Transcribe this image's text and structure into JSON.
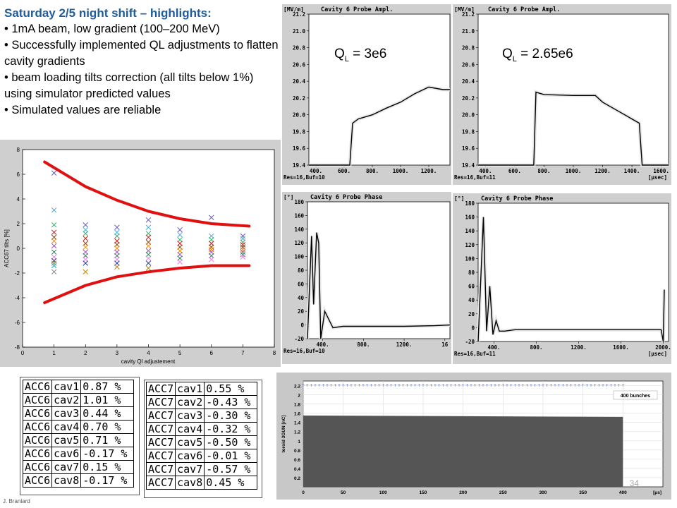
{
  "notes": {
    "title": "Saturday 2/5 night shift – highlights:",
    "bullets": [
      "1mA beam, low gradient (100–200 MeV)",
      "Successfully implemented QL adjustments to flatten cavity gradients",
      "beam loading tilts correction (all tilts below 1%) using simulator predicted values",
      "Simulated values are reliable"
    ]
  },
  "scatter": {
    "ylabel": "ACC67 tilts [%]",
    "xlabel": "cavity Ql adjustement",
    "x_ticks": [
      "0",
      "1",
      "2",
      "3",
      "4",
      "5",
      "6",
      "7",
      "8"
    ],
    "y_ticks": [
      "8",
      "6",
      "4",
      "2",
      "0",
      "-2",
      "-4",
      "-6",
      "-8"
    ]
  },
  "chart_data": [
    {
      "type": "scatter",
      "xlabel": "cavity Ql adjustement",
      "ylabel": "ACC67 tilts [%]",
      "xlim": [
        0,
        8
      ],
      "ylim": [
        -8,
        8
      ],
      "grid": false,
      "series": [
        {
          "x": [
            1,
            1,
            1,
            1,
            1,
            1,
            1,
            1,
            1,
            1,
            1,
            1,
            1
          ],
          "y": [
            6.1,
            3.1,
            1.9,
            1.3,
            0.9,
            0.6,
            0.2,
            -0.3,
            -0.7,
            -1.0,
            -1.2,
            -1.4,
            -1.9
          ]
        },
        {
          "x": [
            2,
            2,
            2,
            2,
            2,
            2,
            2,
            2,
            2,
            2,
            2
          ],
          "y": [
            1.9,
            1.5,
            1.2,
            0.8,
            0.4,
            0.1,
            -0.3,
            -0.6,
            -0.9,
            -1.2,
            -1.9
          ]
        },
        {
          "x": [
            3,
            3,
            3,
            3,
            3,
            3,
            3,
            3,
            3,
            3,
            3
          ],
          "y": [
            1.7,
            1.3,
            1.0,
            0.6,
            0.3,
            0.0,
            -0.3,
            -0.6,
            -0.9,
            -1.2,
            -1.5
          ]
        },
        {
          "x": [
            4,
            4,
            4,
            4,
            4,
            4,
            4,
            4,
            4,
            4,
            4
          ],
          "y": [
            2.3,
            1.7,
            1.2,
            0.9,
            0.5,
            0.2,
            -0.2,
            -0.5,
            -0.8,
            -1.2,
            -1.6
          ]
        },
        {
          "x": [
            5,
            5,
            5,
            5,
            5,
            5,
            5,
            5,
            5
          ],
          "y": [
            1.5,
            1.1,
            0.7,
            0.4,
            0.1,
            -0.2,
            -0.5,
            -0.8,
            -1.1
          ]
        },
        {
          "x": [
            6,
            6,
            6,
            6,
            6,
            6,
            6,
            6,
            6
          ],
          "y": [
            2.5,
            1.0,
            0.7,
            0.4,
            0.1,
            -0.1,
            -0.3,
            -0.6,
            -0.9
          ]
        },
        {
          "x": [
            7,
            7,
            7,
            7,
            7,
            7,
            7,
            7,
            7
          ],
          "y": [
            1.0,
            0.8,
            0.5,
            0.3,
            0.1,
            -0.1,
            -0.3,
            -0.5,
            -0.7
          ]
        }
      ],
      "envelope_upper": {
        "x": [
          0.7,
          2,
          3,
          4,
          5,
          6,
          7.2
        ],
        "y": [
          7.0,
          5.0,
          3.9,
          3.0,
          2.4,
          2.0,
          1.8
        ]
      },
      "envelope_lower": {
        "x": [
          0.7,
          2,
          3,
          4,
          5,
          6,
          7.2
        ],
        "y": [
          -4.4,
          -3.0,
          -2.3,
          -1.9,
          -1.6,
          -1.4,
          -1.4
        ]
      }
    },
    {
      "type": "line",
      "title": "Cavity 6 Probe Ampl.",
      "ylabel": "[MV/m]",
      "ylim": [
        19.4,
        21.2
      ],
      "xlim": [
        350,
        1350
      ],
      "x": [
        350,
        640,
        660,
        700,
        800,
        900,
        1000,
        1100,
        1200,
        1300,
        1350
      ],
      "y": [
        19.4,
        19.4,
        19.9,
        19.95,
        20.0,
        20.08,
        20.15,
        20.25,
        20.33,
        20.3,
        20.3
      ]
    },
    {
      "type": "line",
      "title": "Cavity 6 Probe Ampl.",
      "ylabel": "[MV/m]",
      "ylim": [
        19.4,
        21.2
      ],
      "xlim": [
        350,
        1650
      ],
      "x": [
        350,
        730,
        745,
        800,
        1000,
        1150,
        1200,
        1300,
        1400,
        1450,
        1470,
        1650
      ],
      "y": [
        19.4,
        19.4,
        20.27,
        20.24,
        20.23,
        20.23,
        20.15,
        20.05,
        19.95,
        19.9,
        19.4,
        19.4
      ]
    },
    {
      "type": "line",
      "title": "Cavity 6 Probe Phase",
      "ylabel": "[°]",
      "ylim": [
        -20,
        180
      ],
      "xlim": [
        250,
        1650
      ],
      "x": [
        250,
        290,
        310,
        340,
        360,
        380,
        420,
        500,
        600,
        900,
        1200,
        1500,
        1650
      ],
      "y": [
        -20,
        130,
        30,
        135,
        120,
        -20,
        20,
        -4,
        -2,
        -2,
        -2,
        -1,
        0
      ]
    },
    {
      "type": "line",
      "title": "Cavity 6 Probe Phase",
      "ylabel": "[°]",
      "ylim": [
        -20,
        180
      ],
      "xlim": [
        250,
        2050
      ],
      "x": [
        250,
        300,
        330,
        360,
        390,
        420,
        450,
        500,
        600,
        1000,
        1500,
        1980,
        2000,
        2010
      ],
      "y": [
        -20,
        160,
        -5,
        60,
        -10,
        10,
        -5,
        -5,
        -3,
        -3,
        -3,
        -3,
        -20,
        55
      ]
    },
    {
      "type": "bar",
      "ylabel": "toroid 3GUN [nC]",
      "ylim": [
        0,
        2.3
      ],
      "xlim": [
        0,
        450
      ],
      "series": [
        {
          "name": "400 bunches",
          "x": [
            0,
            400
          ],
          "y": [
            1.55,
            1.52
          ]
        }
      ]
    }
  ],
  "ampl1": {
    "unit": "[MV/m]",
    "title": "Cavity 6 Probe Ampl.",
    "y_ticks": [
      "21.2",
      "21.0",
      "20.8",
      "20.6",
      "20.4",
      "20.2",
      "20.0",
      "19.8",
      "19.6",
      "19.4"
    ],
    "x_ticks": [
      "400.",
      "600.",
      "800.",
      "1000.",
      "1200."
    ],
    "footer": "Res=16,Buf=10"
  },
  "ampl2": {
    "unit": "[MV/m]",
    "title": "Cavity 6 Probe Ampl.",
    "y_ticks": [
      "21.2",
      "21.0",
      "20.8",
      "20.6",
      "20.4",
      "20.2",
      "20.0",
      "19.8",
      "19.6",
      "19.4"
    ],
    "x_ticks": [
      "400.",
      "600.",
      "800.",
      "1000.",
      "1200.",
      "1400.",
      "1600."
    ],
    "footer": "Res=16,Buf=11",
    "xunit": "[μsec]"
  },
  "phase1": {
    "unit": "[°]",
    "title": "Cavity 6 Probe Phase",
    "y_ticks": [
      "180",
      "160",
      "140",
      "120",
      "100",
      "80",
      "60",
      "40",
      "20",
      "0",
      "-20"
    ],
    "x_ticks": [
      "400.",
      "800.",
      "1200.",
      "16"
    ],
    "footer": "Res=16,Buf=10"
  },
  "phase2": {
    "unit": "[°]",
    "title": "Cavity 6 Probe Phase",
    "y_ticks": [
      "180",
      "160",
      "140",
      "120",
      "100",
      "80",
      "60",
      "40",
      "20",
      "0",
      "-20"
    ],
    "x_ticks": [
      "400.",
      "800.",
      "1200.",
      "1600.",
      "2000."
    ],
    "footer": "Res=16,Buf=11",
    "xunit": "[μsec]"
  },
  "ql_labels": {
    "left": {
      "q": "Q",
      "sub": "L",
      "val": " = 3e6"
    },
    "right": {
      "q": "Q",
      "sub": "L",
      "val": " = 2.65e6"
    }
  },
  "acc6": [
    [
      "ACC6",
      "cav1",
      "0.87 %"
    ],
    [
      "ACC6",
      "cav2",
      "1.01 %"
    ],
    [
      "ACC6",
      "cav3",
      "0.44 %"
    ],
    [
      "ACC6",
      "cav4",
      "0.70 %"
    ],
    [
      "ACC6",
      "cav5",
      "0.71 %"
    ],
    [
      "ACC6",
      "cav6",
      "-0.17 %"
    ],
    [
      "ACC6",
      "cav7",
      "0.15 %"
    ],
    [
      "ACC6",
      "cav8",
      "-0.17 %"
    ]
  ],
  "acc7": [
    [
      "ACC7",
      "cav1",
      "0.55 %"
    ],
    [
      "ACC7",
      "cav2",
      "-0.43 %"
    ],
    [
      "ACC7",
      "cav3",
      "-0.30 %"
    ],
    [
      "ACC7",
      "cav4",
      "-0.32 %"
    ],
    [
      "ACC7",
      "cav5",
      "-0.50 %"
    ],
    [
      "ACC7",
      "cav6",
      "-0.01 %"
    ],
    [
      "ACC7",
      "cav7",
      "-0.57 %"
    ],
    [
      "ACC7",
      "cav8",
      "0.45 %"
    ]
  ],
  "toroid": {
    "ylabel": "toroid 3GUN [nC]",
    "legend": "400 bunches",
    "y_ticks": [
      "2.2",
      "2",
      "1.8",
      "1.6",
      "1.4",
      "1.2",
      "1",
      "0.8",
      "0.6",
      "0.4",
      "0.2"
    ],
    "x_ticks": [
      "0",
      "50",
      "100",
      "150",
      "200",
      "250",
      "300",
      "350",
      "400"
    ],
    "xunit": "[μs]"
  },
  "page_number": "34",
  "footer_left": "J. Branlard",
  "colors": {
    "title_blue": "#1f5c99",
    "envelope_red": "#e01010",
    "panel_gray": "#cfcfcf"
  }
}
